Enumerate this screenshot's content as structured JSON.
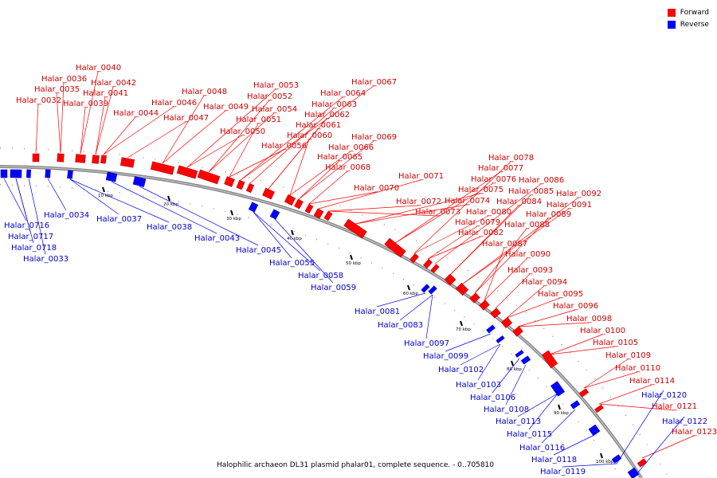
{
  "legend": {
    "forward_label": "Forward",
    "reverse_label": "Reverse",
    "forward_color": "#ff0000",
    "reverse_color": "#0000ff"
  },
  "caption": "Halophilic archaeon DL31 plasmid phalar01, complete sequence. - 0..705810",
  "scale_labels": [
    "10 kbp",
    "20 kbp",
    "30 kbp",
    "40 kbp",
    "50 kbp",
    "60 kbp",
    "70 kbp",
    "80 kbp",
    "90 kbp",
    "100 kbp"
  ],
  "forward_genes": [
    "Halar_0032",
    "Halar_0036",
    "Halar_0035",
    "Halar_0040",
    "Halar_0039",
    "Halar_0042",
    "Halar_0041",
    "Halar_0044",
    "Halar_0046",
    "Halar_0047",
    "Halar_0048",
    "Halar_0049",
    "Halar_0050",
    "Halar_0053",
    "Halar_0052",
    "Halar_0054",
    "Halar_0051",
    "Halar_0056",
    "Halar_0067",
    "Halar_0064",
    "Halar_0063",
    "Halar_0062",
    "Halar_0061",
    "Halar_0060",
    "Halar_0066",
    "Halar_0065",
    "Halar_0069",
    "Halar_0068",
    "Halar_0070",
    "Halar_0071",
    "Halar_0072",
    "Halar_0073",
    "Halar_0074",
    "Halar_0075",
    "Halar_0076",
    "Halar_0077",
    "Halar_0078",
    "Halar_0080",
    "Halar_0079",
    "Halar_0082",
    "Halar_0086",
    "Halar_0085",
    "Halar_0084",
    "Halar_0092",
    "Halar_0091",
    "Halar_0089",
    "Halar_0088",
    "Halar_0087",
    "Halar_0090",
    "Halar_0093",
    "Halar_0094",
    "Halar_0095",
    "Halar_0096",
    "Halar_0098",
    "Halar_0100",
    "Halar_0105",
    "Halar_0109",
    "Halar_0110",
    "Halar_0114",
    "Halar_0121",
    "Halar_0123"
  ],
  "reverse_genes": [
    "Halar_0716",
    "Halar_0717",
    "Halar_0718",
    "Halar_0033",
    "Halar_0034",
    "Halar_0037",
    "Halar_0038",
    "Halar_0043",
    "Halar_0045",
    "Halar_0055",
    "Halar_0058",
    "Halar_0059",
    "Halar_0081",
    "Halar_0083",
    "Halar_0097",
    "Halar_0099",
    "Halar_0102",
    "Halar_0103",
    "Halar_0106",
    "Halar_0108",
    "Halar_0113",
    "Halar_0115",
    "Halar_0116",
    "Halar_0118",
    "Halar_0119",
    "Halar_0120",
    "Halar_0122"
  ]
}
